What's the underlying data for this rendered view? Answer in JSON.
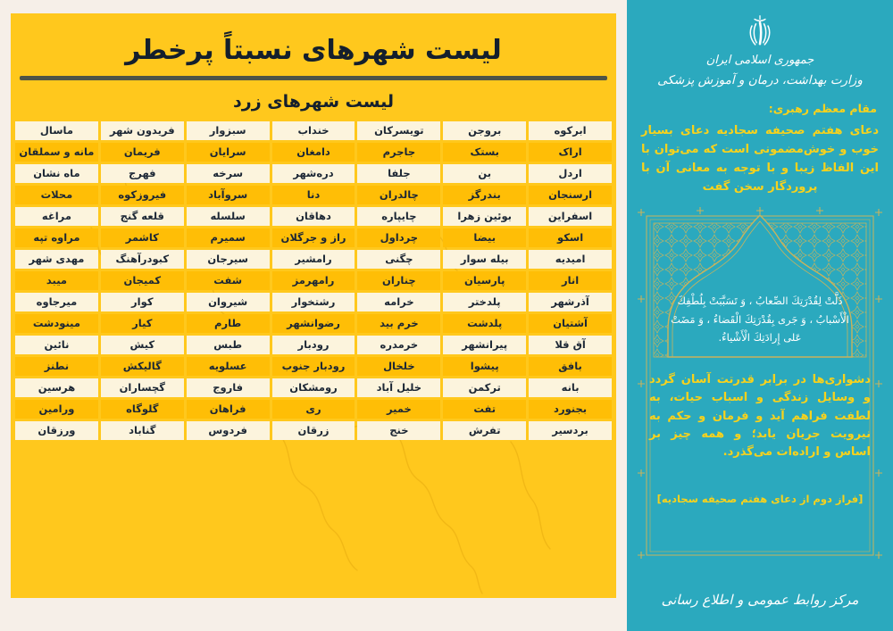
{
  "colors": {
    "page_background": "#f6efe8",
    "yellow_panel": "#ffc81d",
    "amber_row": "#ffbe06",
    "cream_row": "#fcf4dd",
    "navy_text": "#1c2735",
    "divider": "#4e5446",
    "teal_panel": "#2ba9be",
    "yellow_accent": "#f8d21c",
    "gold_ornament": "#c9b35c"
  },
  "left_panel": {
    "title": "لیست شهرهای نسبتاً پرخطر",
    "subtitle": "لیست شهرهای زرد",
    "table": {
      "rows": [
        [
          "ابرکوه",
          "بروجن",
          "تویسرکان",
          "خنداب",
          "سبزوار",
          "فریدون شهر",
          "ماسال"
        ],
        [
          "اراک",
          "بستک",
          "جاجرم",
          "دامغان",
          "سرایان",
          "فریمان",
          "مانه و سملقان"
        ],
        [
          "اردل",
          "بن",
          "جلفا",
          "دره‌شهر",
          "سرخه",
          "فهرج",
          "ماه نشان"
        ],
        [
          "ارسنجان",
          "بندرگز",
          "چالدران",
          "دنا",
          "سروآباد",
          "فیروزکوه",
          "محلات"
        ],
        [
          "اسفراین",
          "بوئین زهرا",
          "چایپاره",
          "دهاقان",
          "سلسله",
          "قلعه گنج",
          "مراغه"
        ],
        [
          "اسکو",
          "بیضا",
          "چرداول",
          "راز و جرگلان",
          "سمیرم",
          "کاشمر",
          "مراوه تپه"
        ],
        [
          "امیدیه",
          "بیله سوار",
          "چگنی",
          "رامشیر",
          "سیرجان",
          "کبودرآهنگ",
          "مهدی شهر"
        ],
        [
          "انار",
          "پارسیان",
          "چناران",
          "رامهرمز",
          "شفت",
          "کمیجان",
          "میبد"
        ],
        [
          "آذرشهر",
          "پلدختر",
          "خرامه",
          "رشتخوار",
          "شیروان",
          "کوار",
          "میرجاوه"
        ],
        [
          "آشتیان",
          "پلدشت",
          "خرم بید",
          "رضوانشهر",
          "طارم",
          "کیار",
          "مینودشت"
        ],
        [
          "آق قلا",
          "پیرانشهر",
          "خرمدره",
          "رودبار",
          "طبس",
          "کیش",
          "نائین"
        ],
        [
          "بافق",
          "پیشوا",
          "خلخال",
          "رودبار جنوب",
          "عسلویه",
          "گالیکش",
          "نطنز"
        ],
        [
          "بانه",
          "ترکمن",
          "خلیل آباد",
          "رومشکان",
          "فاروج",
          "گچساران",
          "هرسین"
        ],
        [
          "بجنورد",
          "تفت",
          "خمیر",
          "ری",
          "فراهان",
          "گلوگاه",
          "ورامین"
        ],
        [
          "بردسیر",
          "تفرش",
          "خنج",
          "زرقان",
          "فردوس",
          "گناباد",
          "ورزقان"
        ]
      ]
    }
  },
  "right_panel": {
    "emblem": "iran-coat-of-arms",
    "government": "جمهوری اسلامی ایران",
    "ministry": "وزارت بهداشت، درمان و آموزش پزشکی",
    "attribution": "مقام معظم رهبری:",
    "leader_quote": "دعای هفتم صحیفه سجادیه دعای بسیار خوب و خوش‌مضمونی است که می‌توان با این الفاظ زیبا و با توجه به معانی آن با پروردگار سخن گفت",
    "arabic_prayer": "ذَلَّتْ لِقُدْرَتِكَ الصِّعابُ ، وَ تَسَبَّبَتْ بِلُطْفِكَ الْأَسْبابُ ، وَ جَرى بِقُدْرَتِكَ الْقَضاءُ ، وَ مَضَتْ عَلى إِرادَتِكَ الْأَشْياءُ.",
    "translation": "دشواری‌ها در برابر قدرتت آسان گردد و وسایل زندگی و اسباب حیات، به لطفت فراهم آید و فرمان و حکم به نیرویت جریان یابد؛ و همه چیز بر اساس و اراده‌ات می‌گذرد.",
    "citation": "[فراز دوم از دعای هفتم صحیفه سجادیه]",
    "footer": "مرکز روابط عمومی و اطلاع رسانی"
  }
}
